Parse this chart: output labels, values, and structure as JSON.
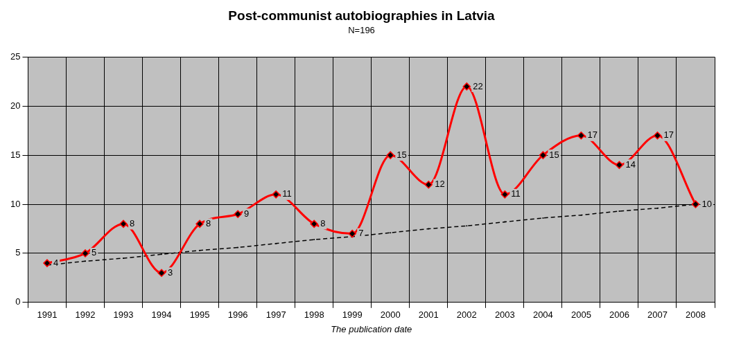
{
  "chart_data": {
    "type": "line",
    "title": "Post-communist autobiographies in Latvia",
    "subtitle": "N=196",
    "xlabel": "The publication date",
    "categories": [
      "1991",
      "1992",
      "1993",
      "1994",
      "1995",
      "1996",
      "1997",
      "1998",
      "1999",
      "2000",
      "2001",
      "2002",
      "2003",
      "2004",
      "2005",
      "2006",
      "2007",
      "2008"
    ],
    "series": [
      {
        "color": "#ff0000",
        "values": [
          4,
          5,
          8,
          3,
          8,
          9,
          11,
          8,
          7,
          15,
          12,
          22,
          11,
          15,
          17,
          14,
          17,
          10
        ],
        "value_labels": [
          "4",
          "5",
          "8",
          "3",
          "8",
          "9",
          "11",
          "8",
          "7",
          "15",
          "12",
          "22",
          "11",
          "15",
          "17",
          "14",
          "17",
          "10"
        ]
      },
      {
        "type": "line",
        "color": "#000000",
        "line_style": "dashed",
        "marker": "none",
        "values": [
          3.8,
          4.2,
          4.5,
          4.9,
          5.3,
          5.6,
          6.0,
          6.4,
          6.7,
          7.1,
          7.5,
          7.8,
          8.2,
          8.6,
          8.9,
          9.3,
          9.6,
          10
        ]
      }
    ],
    "ylim": [
      0,
      25
    ],
    "yticks": [
      0,
      5,
      10,
      15,
      20,
      25
    ],
    "grid": true,
    "legend": false,
    "marker": "diamond",
    "line_style": "solid"
  }
}
